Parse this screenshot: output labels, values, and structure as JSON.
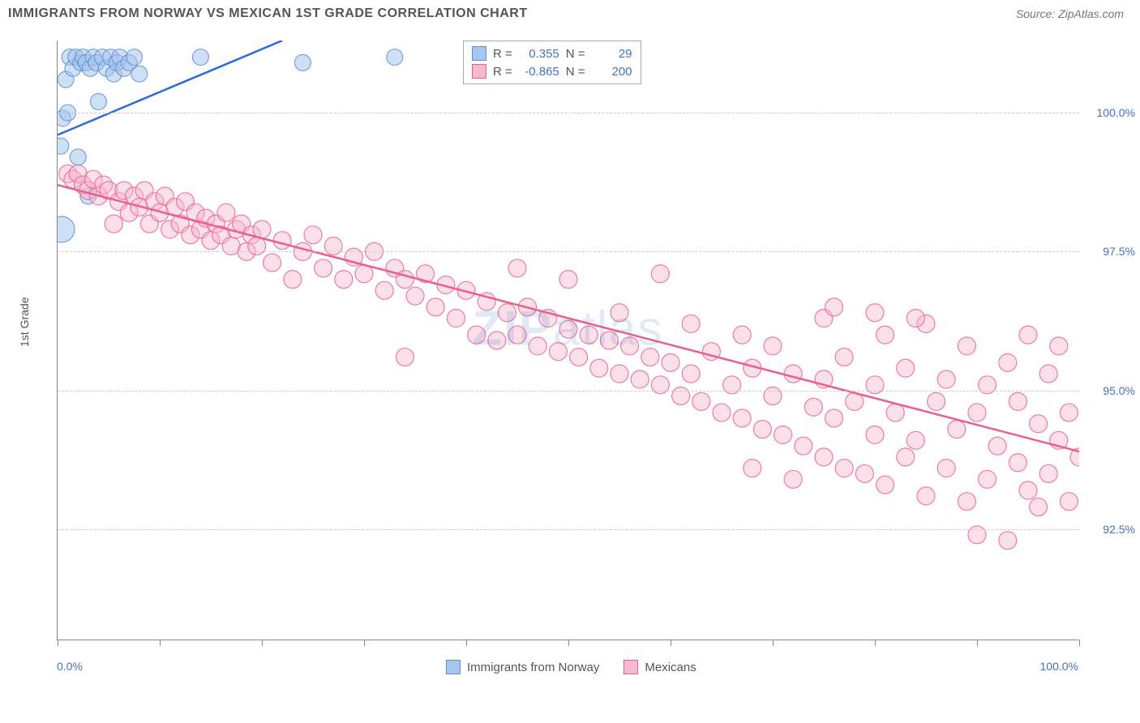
{
  "header": {
    "title": "IMMIGRANTS FROM NORWAY VS MEXICAN 1ST GRADE CORRELATION CHART",
    "source": "Source: ZipAtlas.com"
  },
  "chart": {
    "type": "scatter",
    "y_axis_title": "1st Grade",
    "xlim": [
      0,
      100
    ],
    "ylim": [
      90.5,
      101.3
    ],
    "x_tick_labels": [
      "0.0%",
      "100.0%"
    ],
    "y_ticks": [
      92.5,
      95.0,
      97.5,
      100.0
    ],
    "y_tick_labels": [
      "92.5%",
      "95.0%",
      "97.5%",
      "100.0%"
    ],
    "grid_color": "#cccccc",
    "axis_color": "#888888",
    "background": "#ffffff",
    "watermark": "ZIPatlas",
    "series": [
      {
        "name": "Immigrants from Norway",
        "color_fill": "#a8c5ec",
        "color_stroke": "#5b8fd6",
        "marker_r": 10,
        "marker_opacity": 0.55,
        "R": "0.355",
        "N": "29",
        "trend": {
          "x1": 0,
          "y1": 99.6,
          "x2": 22,
          "y2": 101.3,
          "color": "#2b6cd4",
          "width": 2.5
        },
        "points": [
          {
            "x": 0.3,
            "y": 99.4
          },
          {
            "x": 0.5,
            "y": 99.9
          },
          {
            "x": 0.8,
            "y": 100.6
          },
          {
            "x": 1.0,
            "y": 100.0
          },
          {
            "x": 1.2,
            "y": 101.0
          },
          {
            "x": 1.5,
            "y": 100.8
          },
          {
            "x": 1.8,
            "y": 101.0
          },
          {
            "x": 2.0,
            "y": 99.2
          },
          {
            "x": 2.3,
            "y": 100.9
          },
          {
            "x": 2.5,
            "y": 101.0
          },
          {
            "x": 2.8,
            "y": 100.9
          },
          {
            "x": 3.0,
            "y": 98.5
          },
          {
            "x": 3.2,
            "y": 100.8
          },
          {
            "x": 3.5,
            "y": 101.0
          },
          {
            "x": 3.8,
            "y": 100.9
          },
          {
            "x": 4.0,
            "y": 100.2
          },
          {
            "x": 4.4,
            "y": 101.0
          },
          {
            "x": 4.8,
            "y": 100.8
          },
          {
            "x": 5.2,
            "y": 101.0
          },
          {
            "x": 5.5,
            "y": 100.7
          },
          {
            "x": 5.8,
            "y": 100.9
          },
          {
            "x": 6.1,
            "y": 101.0
          },
          {
            "x": 6.5,
            "y": 100.8
          },
          {
            "x": 7.0,
            "y": 100.9
          },
          {
            "x": 7.5,
            "y": 101.0
          },
          {
            "x": 8.0,
            "y": 100.7
          },
          {
            "x": 14,
            "y": 101.0
          },
          {
            "x": 24,
            "y": 100.9
          },
          {
            "x": 33,
            "y": 101.0
          },
          {
            "x": 0.4,
            "y": 97.9,
            "r": 16
          }
        ]
      },
      {
        "name": "Mexicans",
        "color_fill": "#f7b9cf",
        "color_stroke": "#ea5f8f",
        "marker_r": 11,
        "marker_opacity": 0.45,
        "R": "-0.865",
        "N": "200",
        "trend": {
          "x1": 0,
          "y1": 98.7,
          "x2": 100,
          "y2": 93.9,
          "color": "#ea5f8f",
          "width": 2.5
        },
        "points": [
          {
            "x": 1,
            "y": 98.9
          },
          {
            "x": 1.5,
            "y": 98.8
          },
          {
            "x": 2,
            "y": 98.9
          },
          {
            "x": 2.5,
            "y": 98.7
          },
          {
            "x": 3,
            "y": 98.6
          },
          {
            "x": 3.5,
            "y": 98.8
          },
          {
            "x": 4,
            "y": 98.5
          },
          {
            "x": 4.5,
            "y": 98.7
          },
          {
            "x": 5,
            "y": 98.6
          },
          {
            "x": 5.5,
            "y": 98.0
          },
          {
            "x": 6,
            "y": 98.4
          },
          {
            "x": 6.5,
            "y": 98.6
          },
          {
            "x": 7,
            "y": 98.2
          },
          {
            "x": 7.5,
            "y": 98.5
          },
          {
            "x": 8,
            "y": 98.3
          },
          {
            "x": 8.5,
            "y": 98.6
          },
          {
            "x": 9,
            "y": 98.0
          },
          {
            "x": 9.5,
            "y": 98.4
          },
          {
            "x": 10,
            "y": 98.2
          },
          {
            "x": 10.5,
            "y": 98.5
          },
          {
            "x": 11,
            "y": 97.9
          },
          {
            "x": 11.5,
            "y": 98.3
          },
          {
            "x": 12,
            "y": 98.0
          },
          {
            "x": 12.5,
            "y": 98.4
          },
          {
            "x": 13,
            "y": 97.8
          },
          {
            "x": 13.5,
            "y": 98.2
          },
          {
            "x": 14,
            "y": 97.9
          },
          {
            "x": 14.5,
            "y": 98.1
          },
          {
            "x": 15,
            "y": 97.7
          },
          {
            "x": 15.5,
            "y": 98.0
          },
          {
            "x": 16,
            "y": 97.8
          },
          {
            "x": 16.5,
            "y": 98.2
          },
          {
            "x": 17,
            "y": 97.6
          },
          {
            "x": 17.5,
            "y": 97.9
          },
          {
            "x": 18,
            "y": 98.0
          },
          {
            "x": 18.5,
            "y": 97.5
          },
          {
            "x": 19,
            "y": 97.8
          },
          {
            "x": 19.5,
            "y": 97.6
          },
          {
            "x": 20,
            "y": 97.9
          },
          {
            "x": 21,
            "y": 97.3
          },
          {
            "x": 22,
            "y": 97.7
          },
          {
            "x": 23,
            "y": 97.0
          },
          {
            "x": 24,
            "y": 97.5
          },
          {
            "x": 25,
            "y": 97.8
          },
          {
            "x": 26,
            "y": 97.2
          },
          {
            "x": 27,
            "y": 97.6
          },
          {
            "x": 28,
            "y": 97.0
          },
          {
            "x": 29,
            "y": 97.4
          },
          {
            "x": 30,
            "y": 97.1
          },
          {
            "x": 31,
            "y": 97.5
          },
          {
            "x": 32,
            "y": 96.8
          },
          {
            "x": 33,
            "y": 97.2
          },
          {
            "x": 34,
            "y": 95.6
          },
          {
            "x": 34,
            "y": 97.0
          },
          {
            "x": 35,
            "y": 96.7
          },
          {
            "x": 36,
            "y": 97.1
          },
          {
            "x": 37,
            "y": 96.5
          },
          {
            "x": 38,
            "y": 96.9
          },
          {
            "x": 39,
            "y": 96.3
          },
          {
            "x": 40,
            "y": 96.8
          },
          {
            "x": 41,
            "y": 96.0
          },
          {
            "x": 42,
            "y": 96.6
          },
          {
            "x": 43,
            "y": 95.9
          },
          {
            "x": 44,
            "y": 96.4
          },
          {
            "x": 45,
            "y": 97.2
          },
          {
            "x": 45,
            "y": 96.0
          },
          {
            "x": 46,
            "y": 96.5
          },
          {
            "x": 47,
            "y": 95.8
          },
          {
            "x": 48,
            "y": 96.3
          },
          {
            "x": 49,
            "y": 95.7
          },
          {
            "x": 50,
            "y": 96.1
          },
          {
            "x": 50,
            "y": 97.0
          },
          {
            "x": 51,
            "y": 95.6
          },
          {
            "x": 52,
            "y": 96.0
          },
          {
            "x": 53,
            "y": 95.4
          },
          {
            "x": 54,
            "y": 95.9
          },
          {
            "x": 55,
            "y": 96.4
          },
          {
            "x": 55,
            "y": 95.3
          },
          {
            "x": 56,
            "y": 95.8
          },
          {
            "x": 57,
            "y": 95.2
          },
          {
            "x": 58,
            "y": 95.6
          },
          {
            "x": 59,
            "y": 97.1
          },
          {
            "x": 59,
            "y": 95.1
          },
          {
            "x": 60,
            "y": 95.5
          },
          {
            "x": 61,
            "y": 94.9
          },
          {
            "x": 62,
            "y": 96.2
          },
          {
            "x": 62,
            "y": 95.3
          },
          {
            "x": 63,
            "y": 94.8
          },
          {
            "x": 64,
            "y": 95.7
          },
          {
            "x": 65,
            "y": 94.6
          },
          {
            "x": 66,
            "y": 95.1
          },
          {
            "x": 67,
            "y": 96.0
          },
          {
            "x": 67,
            "y": 94.5
          },
          {
            "x": 68,
            "y": 95.4
          },
          {
            "x": 69,
            "y": 94.3
          },
          {
            "x": 70,
            "y": 95.8
          },
          {
            "x": 70,
            "y": 94.9
          },
          {
            "x": 71,
            "y": 94.2
          },
          {
            "x": 72,
            "y": 95.3
          },
          {
            "x": 73,
            "y": 94.0
          },
          {
            "x": 74,
            "y": 94.7
          },
          {
            "x": 75,
            "y": 96.3
          },
          {
            "x": 75,
            "y": 95.2
          },
          {
            "x": 75,
            "y": 93.8
          },
          {
            "x": 76,
            "y": 94.5
          },
          {
            "x": 77,
            "y": 95.6
          },
          {
            "x": 77,
            "y": 93.6
          },
          {
            "x": 78,
            "y": 94.8
          },
          {
            "x": 79,
            "y": 93.5
          },
          {
            "x": 80,
            "y": 95.1
          },
          {
            "x": 80,
            "y": 94.2
          },
          {
            "x": 81,
            "y": 96.0
          },
          {
            "x": 81,
            "y": 93.3
          },
          {
            "x": 82,
            "y": 94.6
          },
          {
            "x": 83,
            "y": 95.4
          },
          {
            "x": 83,
            "y": 93.8
          },
          {
            "x": 84,
            "y": 94.1
          },
          {
            "x": 85,
            "y": 96.2
          },
          {
            "x": 85,
            "y": 93.1
          },
          {
            "x": 86,
            "y": 94.8
          },
          {
            "x": 87,
            "y": 93.6
          },
          {
            "x": 87,
            "y": 95.2
          },
          {
            "x": 88,
            "y": 94.3
          },
          {
            "x": 89,
            "y": 93.0
          },
          {
            "x": 89,
            "y": 95.8
          },
          {
            "x": 90,
            "y": 94.6
          },
          {
            "x": 90,
            "y": 92.4
          },
          {
            "x": 91,
            "y": 93.4
          },
          {
            "x": 91,
            "y": 95.1
          },
          {
            "x": 92,
            "y": 94.0
          },
          {
            "x": 93,
            "y": 92.3
          },
          {
            "x": 93,
            "y": 95.5
          },
          {
            "x": 94,
            "y": 93.7
          },
          {
            "x": 94,
            "y": 94.8
          },
          {
            "x": 95,
            "y": 93.2
          },
          {
            "x": 95,
            "y": 96.0
          },
          {
            "x": 96,
            "y": 94.4
          },
          {
            "x": 96,
            "y": 92.9
          },
          {
            "x": 97,
            "y": 95.3
          },
          {
            "x": 97,
            "y": 93.5
          },
          {
            "x": 98,
            "y": 94.1
          },
          {
            "x": 98,
            "y": 95.8
          },
          {
            "x": 99,
            "y": 93.0
          },
          {
            "x": 99,
            "y": 94.6
          },
          {
            "x": 100,
            "y": 93.8
          },
          {
            "x": 68,
            "y": 93.6
          },
          {
            "x": 72,
            "y": 93.4
          },
          {
            "x": 76,
            "y": 96.5
          },
          {
            "x": 80,
            "y": 96.4
          },
          {
            "x": 84,
            "y": 96.3
          }
        ]
      }
    ]
  },
  "info_box": {
    "r_label": "R =",
    "n_label": "N ="
  },
  "legend": {
    "label1": "Immigrants from Norway",
    "label2": "Mexicans"
  }
}
